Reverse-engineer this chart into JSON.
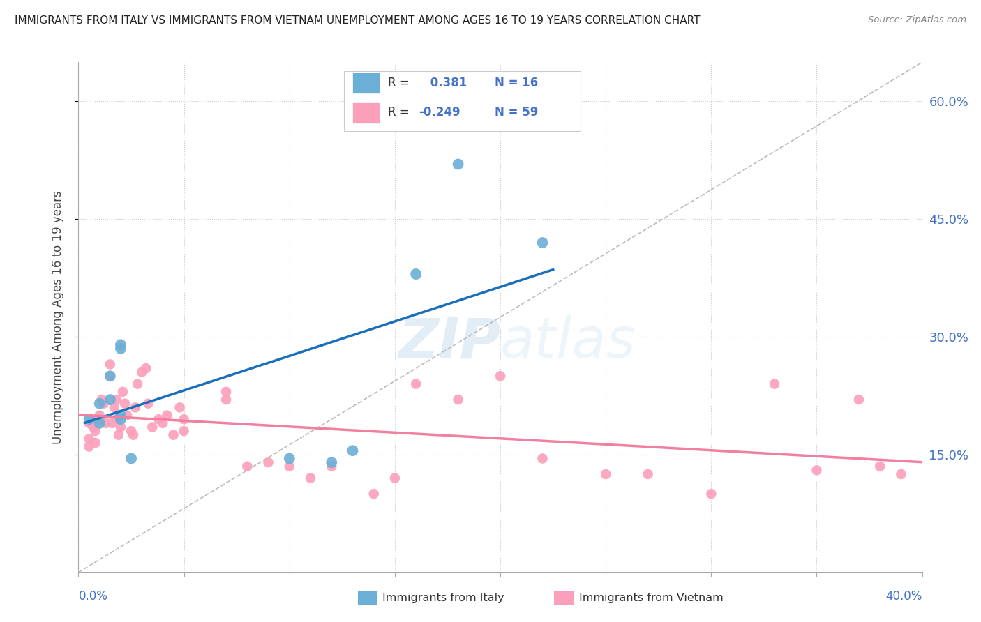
{
  "title": "IMMIGRANTS FROM ITALY VS IMMIGRANTS FROM VIETNAM UNEMPLOYMENT AMONG AGES 16 TO 19 YEARS CORRELATION CHART",
  "source": "Source: ZipAtlas.com",
  "ylabel": "Unemployment Among Ages 16 to 19 years",
  "xlim": [
    0.0,
    0.4
  ],
  "ylim": [
    0.0,
    0.65
  ],
  "yticks": [
    0.15,
    0.3,
    0.45,
    0.6
  ],
  "ytick_labels": [
    "15.0%",
    "30.0%",
    "45.0%",
    "60.0%"
  ],
  "italy_R": 0.381,
  "italy_N": 16,
  "vietnam_R": -0.249,
  "vietnam_N": 59,
  "italy_color": "#6baed6",
  "vietnam_color": "#fc9fbb",
  "italy_line_color": "#1a6fbd",
  "vietnam_line_color": "#f07fa0",
  "dashed_line_color": "#bbbbbb",
  "italy_points_x": [
    0.005,
    0.01,
    0.01,
    0.015,
    0.015,
    0.02,
    0.02,
    0.02,
    0.025,
    0.1,
    0.12,
    0.13,
    0.16,
    0.18,
    0.22,
    0.02
  ],
  "italy_points_y": [
    0.195,
    0.215,
    0.19,
    0.22,
    0.25,
    0.285,
    0.29,
    0.195,
    0.145,
    0.145,
    0.14,
    0.155,
    0.38,
    0.52,
    0.42,
    0.2
  ],
  "vietnam_points_x": [
    0.005,
    0.005,
    0.005,
    0.007,
    0.008,
    0.008,
    0.008,
    0.01,
    0.01,
    0.011,
    0.012,
    0.013,
    0.015,
    0.015,
    0.016,
    0.017,
    0.018,
    0.018,
    0.019,
    0.02,
    0.021,
    0.022,
    0.023,
    0.025,
    0.026,
    0.027,
    0.028,
    0.03,
    0.032,
    0.033,
    0.035,
    0.038,
    0.04,
    0.042,
    0.045,
    0.048,
    0.05,
    0.05,
    0.07,
    0.07,
    0.08,
    0.09,
    0.1,
    0.11,
    0.12,
    0.14,
    0.15,
    0.16,
    0.18,
    0.2,
    0.22,
    0.25,
    0.27,
    0.3,
    0.33,
    0.35,
    0.37,
    0.38,
    0.39
  ],
  "vietnam_points_y": [
    0.19,
    0.17,
    0.16,
    0.185,
    0.195,
    0.18,
    0.165,
    0.2,
    0.195,
    0.22,
    0.215,
    0.19,
    0.25,
    0.265,
    0.19,
    0.21,
    0.22,
    0.195,
    0.175,
    0.185,
    0.23,
    0.215,
    0.2,
    0.18,
    0.175,
    0.21,
    0.24,
    0.255,
    0.26,
    0.215,
    0.185,
    0.195,
    0.19,
    0.2,
    0.175,
    0.21,
    0.195,
    0.18,
    0.23,
    0.22,
    0.135,
    0.14,
    0.135,
    0.12,
    0.135,
    0.1,
    0.12,
    0.24,
    0.22,
    0.25,
    0.145,
    0.125,
    0.125,
    0.1,
    0.24,
    0.13,
    0.22,
    0.135,
    0.125
  ]
}
